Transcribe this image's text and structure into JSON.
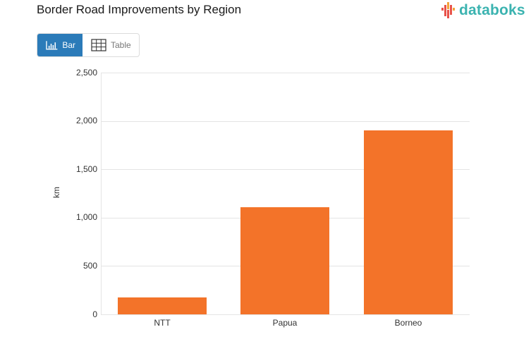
{
  "header": {
    "title": "Border Road Improvements by Region",
    "logo_text": "databoks"
  },
  "toggle": {
    "bar_label": "Bar",
    "table_label": "Table",
    "active": "Bar"
  },
  "colors": {
    "bar": "#f37329",
    "toggle_active": "#2b7bb9",
    "logo": "#3bb3b0"
  },
  "chart_data": {
    "type": "bar",
    "title": "Border Road Improvements by Region",
    "xlabel": "",
    "ylabel": "km",
    "categories": [
      "NTT",
      "Papua",
      "Borneo"
    ],
    "values": [
      175,
      1110,
      1900
    ],
    "ylim": [
      0,
      2500
    ],
    "yticks": [
      0,
      500,
      1000,
      1500,
      2000,
      2500
    ],
    "ytick_labels": [
      "0",
      "500",
      "1,000",
      "1,500",
      "2,000",
      "2,500"
    ],
    "grid": true,
    "legend": "none"
  }
}
